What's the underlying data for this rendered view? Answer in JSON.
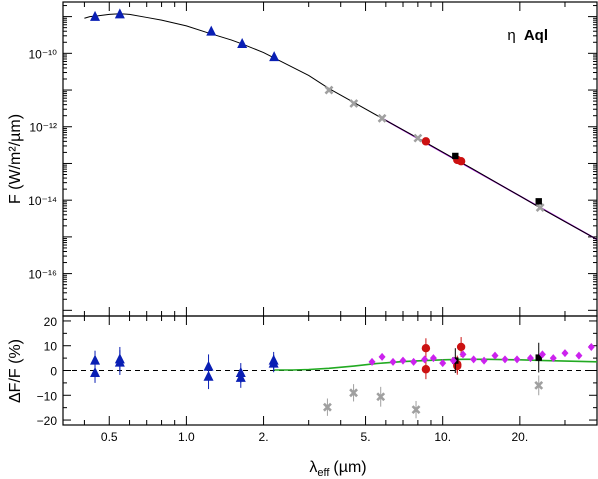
{
  "chart_data": [
    {
      "type": "scatter",
      "panel": "top",
      "ylabel": "F (W/m²/µm)",
      "xscale": "log",
      "yscale": "log",
      "xlim": [
        0.33,
        40
      ],
      "ylim": [
        7e-18,
        2.5e-09
      ],
      "grid": false,
      "y_ticks": [
        {
          "value": 1e-10,
          "label": "10⁻¹⁰"
        },
        {
          "value": 1e-12,
          "label": "10⁻¹²"
        },
        {
          "value": 1e-14,
          "label": "10⁻¹⁴"
        },
        {
          "value": 1e-16,
          "label": "10⁻¹⁶"
        }
      ],
      "annotation": {
        "greek": "η",
        "name": "Aql"
      },
      "model_curve": {
        "name": "",
        "color": "#000000",
        "x": [
          0.4,
          0.42,
          0.45,
          0.5,
          0.55,
          0.6,
          0.7,
          0.8,
          1.0,
          1.2,
          1.5,
          1.65,
          2.0,
          2.2,
          3.0,
          3.6,
          4.5,
          5.8,
          8.0,
          11.0,
          13.0,
          20.0,
          24.0,
          30.0,
          40.0
        ],
        "y": [
          9e-10,
          1e-09,
          1.05e-09,
          1.15e-09,
          1.2e-09,
          1.15e-09,
          9.5e-10,
          8e-10,
          5.6e-10,
          3.7e-10,
          2.3e-10,
          1.8e-10,
          1.05e-10,
          7.5e-11,
          2.5e-11,
          1.1e-11,
          4.6e-12,
          1.7e-12,
          4.9e-13,
          1.4e-13,
          7.3e-14,
          1.3e-14,
          6.2e-15,
          2.6e-15,
          8.5e-16
        ]
      },
      "spectrum_curve": {
        "name": "",
        "color": "#9900cc",
        "x": [
          5.8,
          40.0
        ],
        "y": [
          1.7e-12,
          8.5e-16
        ]
      },
      "series": [
        {
          "name": "",
          "marker": "triangle",
          "color": "#0a1fb4",
          "x": [
            0.44,
            0.55,
            1.25,
            1.65,
            2.2
          ],
          "y": [
            9.8e-10,
            1.15e-09,
            3.9e-10,
            1.8e-10,
            7.9e-11
          ]
        },
        {
          "name": "",
          "marker": "cross",
          "color": "#a0a0a0",
          "x": [
            3.6,
            4.5,
            5.8,
            8.0,
            24.0
          ],
          "y": [
            1e-11,
            4.3e-12,
            1.7e-12,
            4.9e-13,
            6.3e-15
          ]
        },
        {
          "name": "",
          "marker": "circle",
          "color": "#cc1111",
          "x": [
            8.6,
            11.4,
            11.8
          ],
          "y": [
            4e-13,
            1.25e-13,
            1.15e-13
          ]
        },
        {
          "name": "",
          "marker": "square",
          "color": "#000000",
          "x": [
            11.2,
            23.7
          ],
          "y": [
            1.6e-13,
            9.3e-15
          ]
        }
      ]
    },
    {
      "type": "scatter",
      "panel": "bottom",
      "xlabel": {
        "lambda": "λ",
        "sub": "eff",
        "unit": "(µm)"
      },
      "ylabel": "ΔF/F (%)",
      "xscale": "log",
      "xlim": [
        0.33,
        40
      ],
      "ylim": [
        -22,
        22
      ],
      "grid": false,
      "x_ticks": [
        {
          "value": 0.5,
          "label": "0.5"
        },
        {
          "value": 1.0,
          "label": "1.0"
        },
        {
          "value": 2.0,
          "label": "2."
        },
        {
          "value": 5.0,
          "label": "5."
        },
        {
          "value": 10.0,
          "label": "10."
        },
        {
          "value": 20.0,
          "label": "20."
        }
      ],
      "y_ticks": [
        {
          "value": 20,
          "label": "20"
        },
        {
          "value": 10,
          "label": "10"
        },
        {
          "value": 0,
          "label": "0"
        },
        {
          "value": -10,
          "label": "−10"
        },
        {
          "value": -20,
          "label": "−20"
        }
      ],
      "zero_line": 0,
      "model_residual_curve": {
        "name": "",
        "color": "#22aa22",
        "x": [
          2.2,
          2.6,
          3.0,
          3.6,
          4.5,
          5.5,
          7.0,
          8.5,
          10.0,
          12.0,
          15.0,
          20.0,
          25.0,
          40.0
        ],
        "y": [
          0.2,
          0.2,
          0.4,
          0.9,
          1.8,
          2.8,
          3.6,
          4.0,
          4.3,
          4.5,
          4.5,
          4.3,
          4.0,
          3.5
        ]
      },
      "series": [
        {
          "name": "",
          "marker": "triangle",
          "color": "#0a1fb4",
          "x": [
            0.44,
            0.44,
            0.55,
            0.55,
            1.22,
            1.22,
            1.63,
            1.63,
            2.19,
            2.19
          ],
          "y": [
            4.0,
            -1.0,
            4.5,
            3.2,
            1.5,
            -2.5,
            -1.0,
            -3.0,
            4.0,
            2.8
          ],
          "err": [
            4.0,
            4.0,
            5.0,
            5.0,
            5.0,
            5.0,
            4.0,
            4.0,
            3.5,
            3.5
          ]
        },
        {
          "name": "",
          "marker": "cross",
          "color": "#a0a0a0",
          "x": [
            3.55,
            4.49,
            5.73,
            7.87,
            23.7
          ],
          "y": [
            -14.8,
            -9.0,
            -10.6,
            -15.8,
            -6.0
          ],
          "err": [
            3.5,
            3.5,
            4.0,
            3.5,
            4.0
          ]
        },
        {
          "name": "",
          "marker": "circle",
          "color": "#cc1111",
          "x": [
            8.6,
            8.6,
            11.4,
            11.4,
            11.8
          ],
          "y": [
            9.0,
            0.5,
            2.5,
            1.8,
            9.5
          ],
          "err": [
            4.0,
            4.0,
            3.5,
            3.5,
            4.0
          ]
        },
        {
          "name": "",
          "marker": "square",
          "color": "#000000",
          "x": [
            11.2,
            23.7
          ],
          "y": [
            4.0,
            5.2
          ],
          "err": [
            5.0,
            6.0
          ]
        },
        {
          "name": "",
          "marker": "diamond",
          "color": "#cc22ee",
          "x": [
            5.3,
            5.8,
            6.4,
            7.0,
            7.7,
            8.5,
            9.2,
            10.0,
            11.0,
            12.0,
            13.2,
            14.5,
            16.0,
            17.5,
            19.5,
            22.0,
            24.5,
            27.0,
            30.0,
            34.0,
            38.0
          ],
          "y": [
            3.5,
            5.5,
            3.5,
            4.0,
            3.5,
            4.5,
            5.0,
            3.0,
            4.0,
            6.5,
            4.5,
            4.0,
            6.0,
            4.5,
            4.5,
            5.0,
            6.5,
            5.0,
            7.0,
            6.0,
            9.5
          ]
        }
      ]
    }
  ]
}
